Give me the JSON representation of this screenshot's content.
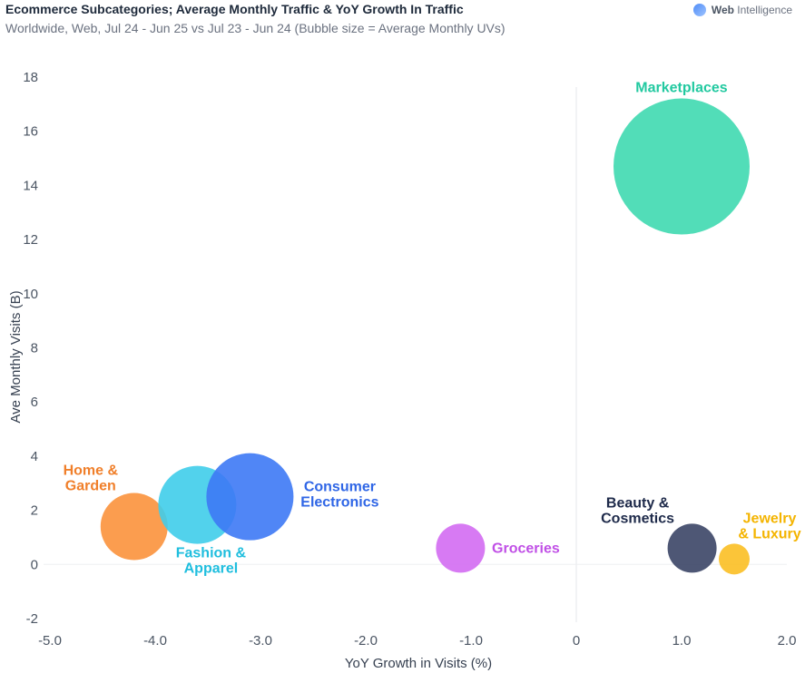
{
  "header": {
    "title": "Ecommerce Subcategories; Average Monthly Traffic & YoY Growth In Traffic",
    "subtitle": "Worldwide, Web, Jul 24 - Jun 25 vs Jul 23 - Jun 24 (Bubble size = Average Monthly UVs)",
    "brand_bold": "Web",
    "brand_rest": " Intelligence"
  },
  "chart_data": {
    "type": "scatter",
    "xlabel": "YoY Growth in Visits (%)",
    "ylabel": "Ave Monthly Visits (B)",
    "xlim": [
      -5.0,
      2.0
    ],
    "ylim": [
      -2,
      18
    ],
    "x_ticks": [
      -5.0,
      -4.0,
      -3.0,
      -2.0,
      -1.0,
      0,
      1.0,
      2.0
    ],
    "x_tick_labels": [
      "-5.0",
      "-4.0",
      "-3.0",
      "-2.0",
      "-1.0",
      "0",
      "1.0",
      "2.0"
    ],
    "y_ticks": [
      -2,
      0,
      2,
      4,
      6,
      8,
      10,
      12,
      14,
      16,
      18
    ],
    "y_tick_labels": [
      "-2",
      "0",
      "2",
      "4",
      "6",
      "8",
      "10",
      "12",
      "14",
      "16",
      "18"
    ],
    "grid": false,
    "series": [
      {
        "name": "Marketplaces",
        "label_lines": [
          "Marketplaces"
        ],
        "x": 1.0,
        "y": 14.7,
        "size": 75,
        "color": "#3fd9b0",
        "label_color": "#22c9a0"
      },
      {
        "name": "Home & Garden",
        "label_lines": [
          "Home &",
          "Garden"
        ],
        "x": -4.2,
        "y": 1.4,
        "size": 37,
        "color": "#fb923c",
        "label_color": "#f07f2a"
      },
      {
        "name": "Fashion & Apparel",
        "label_lines": [
          "Fashion &",
          "Apparel"
        ],
        "x": -3.6,
        "y": 2.2,
        "size": 43,
        "color": "#3fcdea",
        "label_color": "#1fbede"
      },
      {
        "name": "Consumer Electronics",
        "label_lines": [
          "Consumer",
          "Electronics"
        ],
        "x": -3.1,
        "y": 2.5,
        "size": 48,
        "color": "#3d79f5",
        "label_color": "#2f66e6"
      },
      {
        "name": "Groceries",
        "label_lines": [
          "Groceries"
        ],
        "x": -1.1,
        "y": 0.6,
        "size": 27,
        "color": "#d36cf2",
        "label_color": "#c04fe6"
      },
      {
        "name": "Beauty & Cosmetics",
        "label_lines": [
          "Beauty &",
          "Cosmetics"
        ],
        "x": 1.1,
        "y": 0.6,
        "size": 27,
        "color": "#3b4566",
        "label_color": "#1e2a4a"
      },
      {
        "name": "Jewelry & Luxury",
        "label_lines": [
          "Jewelry",
          "& Luxury"
        ],
        "x": 1.5,
        "y": 0.2,
        "size": 17,
        "color": "#fbbf24",
        "label_color": "#f4b400"
      }
    ]
  }
}
